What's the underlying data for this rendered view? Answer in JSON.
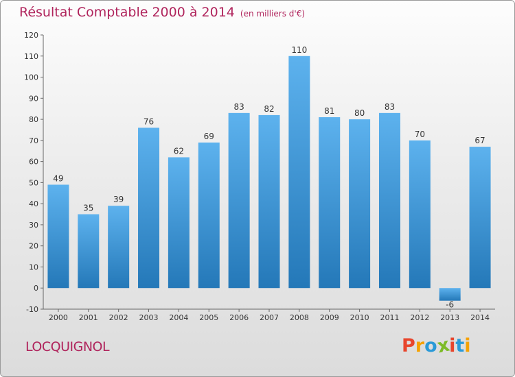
{
  "chart_data": {
    "type": "bar",
    "title": "Résultat Comptable 2000 à 2014",
    "subtitle": "(en milliers d'€)",
    "xlabel": "",
    "ylabel": "",
    "categories": [
      "2000",
      "2001",
      "2002",
      "2003",
      "2004",
      "2005",
      "2006",
      "2007",
      "2008",
      "2009",
      "2010",
      "2011",
      "2012",
      "2013",
      "2014"
    ],
    "values": [
      49,
      35,
      39,
      76,
      62,
      69,
      83,
      82,
      110,
      81,
      80,
      83,
      70,
      -6,
      67
    ],
    "ylim": [
      -10,
      120
    ],
    "yticks": [
      -10,
      0,
      10,
      20,
      30,
      40,
      50,
      60,
      70,
      80,
      90,
      100,
      110,
      120
    ],
    "grid": false,
    "bar_color": "#3c9ae0"
  },
  "footer": {
    "commune": "LOCQUIGNOL",
    "brand": "Proxiti"
  },
  "colors": {
    "title": "#b0245c",
    "brand_letters": [
      "#e8452c",
      "#f5a200",
      "#2a9ad8",
      "#7dbb27",
      "#e8452c",
      "#2a9ad8",
      "#f5a200"
    ]
  }
}
